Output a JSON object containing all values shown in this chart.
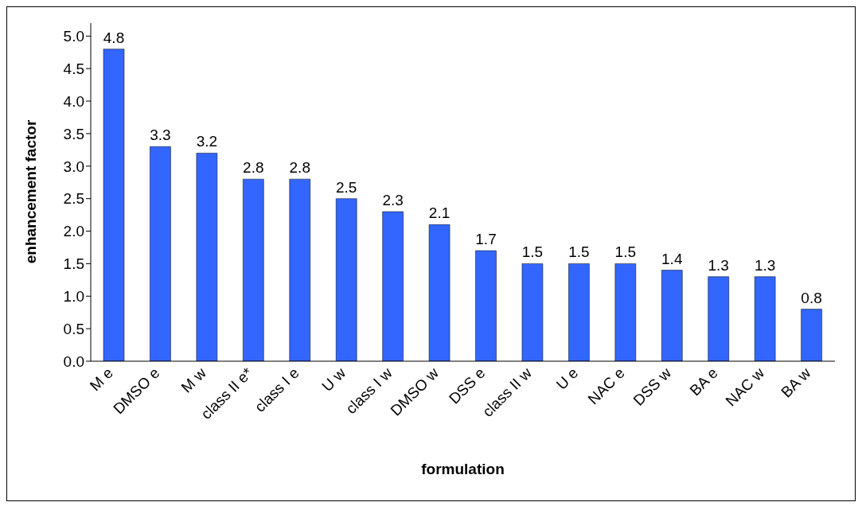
{
  "chart_data": {
    "type": "bar",
    "xlabel": "formulation",
    "ylabel": "enhancement factor",
    "categories": [
      "M e",
      "DMSO e",
      "M w",
      "class II e*",
      "class I e",
      "U w",
      "class I w",
      "DMSO w",
      "DSS e",
      "class II w",
      "U e",
      "NAC e",
      "DSS w",
      "BA e",
      "NAC w",
      "BA w"
    ],
    "values": [
      4.8,
      3.3,
      3.2,
      2.8,
      2.8,
      2.5,
      2.3,
      2.1,
      1.7,
      1.5,
      1.5,
      1.5,
      1.4,
      1.3,
      1.3,
      0.8
    ],
    "color": "#3366ff",
    "data_labels": true,
    "grid": false,
    "legend": false,
    "ylim": [
      0,
      5.2
    ],
    "yticks": [
      {
        "value": 0,
        "label": "0.0"
      },
      {
        "value": 0.5,
        "label": "0.5"
      },
      {
        "value": 1,
        "label": "1.0"
      },
      {
        "value": 1.5,
        "label": "1.5"
      },
      {
        "value": 2,
        "label": "2.0"
      },
      {
        "value": 2.5,
        "label": "2.5"
      },
      {
        "value": 3,
        "label": "3.0"
      },
      {
        "value": 3.5,
        "label": "3.5"
      },
      {
        "value": 4,
        "label": "4.0"
      },
      {
        "value": 4.5,
        "label": "4.5"
      },
      {
        "value": 5,
        "label": "5.0"
      }
    ]
  }
}
